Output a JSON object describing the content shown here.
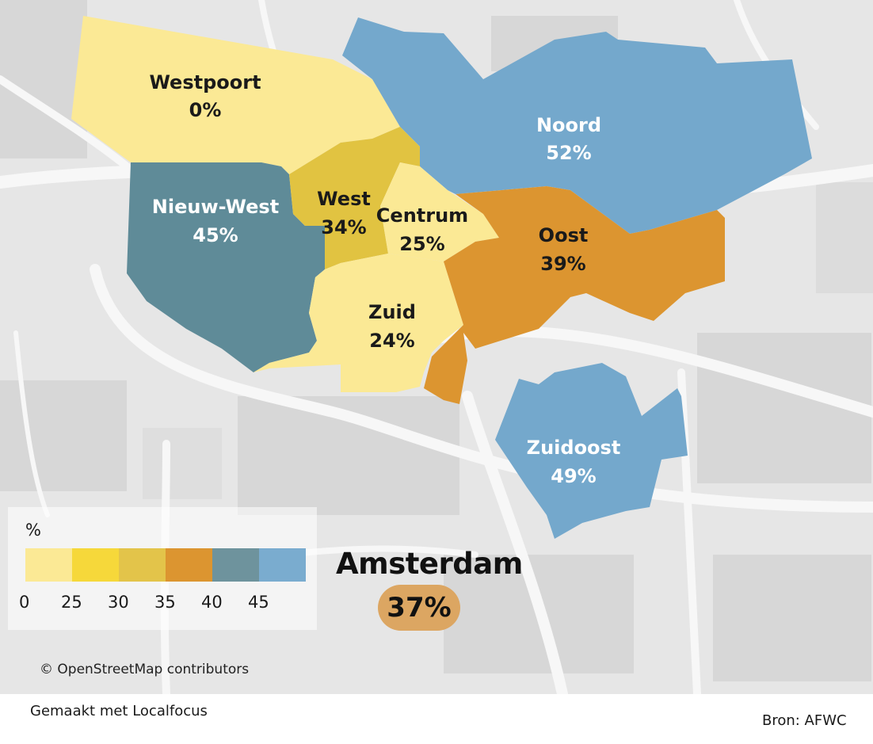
{
  "map": {
    "districts": [
      {
        "id": "westpoort",
        "name": "Westpoort",
        "value_label": "0%",
        "value": 0,
        "fill": "#fbe995",
        "label_color": "#1a1a1a"
      },
      {
        "id": "noord",
        "name": "Noord",
        "value_label": "52%",
        "value": 52,
        "fill": "#74a8cc",
        "label_color": "#ffffff"
      },
      {
        "id": "nieuw-west",
        "name": "Nieuw-West",
        "value_label": "45%",
        "value": 45,
        "fill": "#5f8b98",
        "label_color": "#ffffff"
      },
      {
        "id": "west",
        "name": "West",
        "value_label": "34%",
        "value": 34,
        "fill": "#e1c341",
        "label_color": "#1a1a1a"
      },
      {
        "id": "centrum",
        "name": "Centrum",
        "value_label": "25%",
        "value": 25,
        "fill": "#fbe995",
        "label_color": "#1a1a1a"
      },
      {
        "id": "oost",
        "name": "Oost",
        "value_label": "39%",
        "value": 39,
        "fill": "#dc9530",
        "label_color": "#1a1a1a"
      },
      {
        "id": "zuid",
        "name": "Zuid",
        "value_label": "24%",
        "value": 24,
        "fill": "#fbe995",
        "label_color": "#1a1a1a"
      },
      {
        "id": "zuidoost",
        "name": "Zuidoost",
        "value_label": "49%",
        "value": 49,
        "fill": "#74a8cc",
        "label_color": "#ffffff"
      }
    ]
  },
  "legend": {
    "unit": "%",
    "swatches": [
      "#fbe995",
      "#f6d83a",
      "#e3c44a",
      "#dc9530",
      "#6e939d",
      "#7aaccf"
    ],
    "ticks": [
      "0",
      "25",
      "30",
      "35",
      "40",
      "45"
    ]
  },
  "total": {
    "name": "Amsterdam",
    "value_label": "37%",
    "badge_color": "#dca662"
  },
  "attribution": "© OpenStreetMap contributors",
  "footer": {
    "made_with": "Gemaakt met Localfocus",
    "source": "Bron: AFWC"
  }
}
